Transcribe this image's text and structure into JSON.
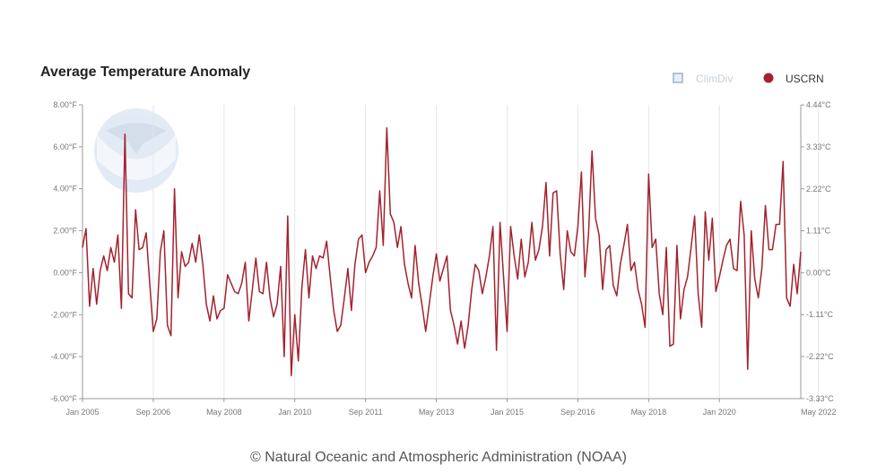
{
  "chart_data": {
    "type": "line",
    "title": "Average Temperature Anomaly",
    "legend": {
      "placement": "top-right",
      "items": [
        {
          "name": "ClimDiv",
          "color": "#9fb2cc",
          "active": false
        },
        {
          "name": "USCRN",
          "color": "#a3222e",
          "active": true
        }
      ]
    },
    "left_axis": {
      "unit": "°F",
      "ylim": [
        -6,
        8
      ],
      "ticks": [
        8,
        6,
        4,
        2,
        0,
        -2,
        -4,
        -6
      ],
      "tick_labels": [
        "8.00°F",
        "6.00°F",
        "4.00°F",
        "2.00°F",
        "0.00°F",
        "-2.00°F",
        "-4.00°F",
        "-6.00°F"
      ]
    },
    "right_axis": {
      "unit": "°C",
      "ticks": [
        4.44,
        3.33,
        2.22,
        1.11,
        0,
        -1.11,
        -2.22,
        -3.33
      ],
      "tick_labels": [
        "4.44°C",
        "3.33°C",
        "2.22°C",
        "1.11°C",
        "0.00°C",
        "-1.11°C",
        "-2.22°C",
        "-3.33°C"
      ]
    },
    "x_axis": {
      "range": [
        "Jan 2005",
        "May 2022"
      ],
      "tick_labels": [
        "Jan 2005",
        "Sep 2006",
        "May 2008",
        "Jan 2010",
        "Sep 2011",
        "May 2013",
        "Jan 2015",
        "Sep 2016",
        "May 2018",
        "Jan 2020",
        "May 2022"
      ],
      "tick_index": [
        0,
        20,
        40,
        60,
        80,
        100,
        120,
        140,
        160,
        180,
        208
      ]
    },
    "grid": "vertical",
    "series": [
      {
        "name": "USCRN",
        "color": "#a3222e",
        "start": "Jan 2005",
        "frequency": "monthly",
        "values": [
          1.2,
          2.1,
          -1.6,
          0.2,
          -1.5,
          0.1,
          0.8,
          0.1,
          1.2,
          0.5,
          1.8,
          -1.7,
          6.6,
          -1.0,
          -1.2,
          3.0,
          1.1,
          1.2,
          1.9,
          -0.5,
          -2.8,
          -2.2,
          1.0,
          2.0,
          -2.5,
          -3.0,
          4.0,
          -1.2,
          1.0,
          0.3,
          0.5,
          1.4,
          0.5,
          1.8,
          0.4,
          -1.5,
          -2.3,
          -1.1,
          -2.2,
          -1.8,
          -1.7,
          -0.1,
          -0.5,
          -0.9,
          -1.0,
          -0.5,
          0.5,
          -2.3,
          -0.8,
          0.7,
          -0.9,
          -1.0,
          0.5,
          -1.2,
          -2.1,
          -1.5,
          0.3,
          -4.0,
          2.7,
          -4.9,
          -2.0,
          -4.2,
          -0.7,
          1.1,
          -1.2,
          0.8,
          0.2,
          0.8,
          0.7,
          1.5,
          -0.2,
          -1.8,
          -2.8,
          -2.5,
          -1.2,
          0.2,
          -1.8,
          0.4,
          1.6,
          1.8,
          0.0,
          0.5,
          0.8,
          1.2,
          3.9,
          1.3,
          6.9,
          2.8,
          2.4,
          1.2,
          2.2,
          0.4,
          -0.5,
          -1.2,
          1.3,
          -0.5,
          -1.6,
          -2.8,
          -1.5,
          -0.2,
          0.9,
          -0.4,
          0.2,
          0.8,
          -1.8,
          -2.5,
          -3.4,
          -2.3,
          -3.6,
          -2.5,
          -0.8,
          0.4,
          0.1,
          -1.0,
          -0.2,
          0.8,
          2.2,
          -3.7,
          2.4,
          -0.2,
          -2.8,
          2.2,
          0.8,
          -0.3,
          1.6,
          -0.2,
          0.5,
          2.4,
          0.6,
          1.1,
          2.2,
          4.3,
          0.8,
          3.8,
          3.9,
          0.9,
          -0.8,
          2.0,
          1.0,
          0.8,
          2.2,
          4.8,
          -0.2,
          1.8,
          5.8,
          2.6,
          1.8,
          -0.8,
          1.1,
          1.3,
          -0.6,
          -1.1,
          0.4,
          1.3,
          2.3,
          0.1,
          0.5,
          -0.8,
          -1.5,
          -2.6,
          4.7,
          1.2,
          1.6,
          -1.0,
          -2.0,
          1.2,
          -3.5,
          -3.4,
          1.3,
          -2.2,
          -0.8,
          -0.2,
          1.2,
          2.7,
          -1.0,
          -2.6,
          2.9,
          0.6,
          2.6,
          -0.9,
          -0.2,
          0.6,
          1.3,
          1.6,
          0.2,
          0.1,
          3.4,
          1.8,
          -4.6,
          2.0,
          -0.3,
          -1.2,
          0.2,
          3.2,
          1.1,
          1.1,
          2.3,
          2.3,
          5.3,
          -1.2,
          -1.6,
          0.4,
          -1.0,
          1.0
        ]
      }
    ],
    "watermark": "NOAA logo"
  },
  "credit": "© Natural Oceanic and Atmospheric Administration (NOAA)"
}
